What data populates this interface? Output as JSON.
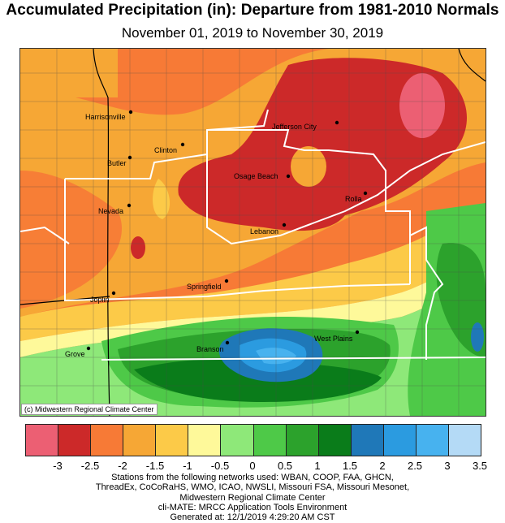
{
  "header": {
    "title": "Accumulated Precipitation (in): Departure from 1981-2010 Normals",
    "subtitle": "November 01, 2019 to November 30, 2019"
  },
  "map": {
    "credit": "(c) Midwestern Regional Climate Center",
    "cities": [
      {
        "name": "Harrisonville"
      },
      {
        "name": "Jefferson City"
      },
      {
        "name": "Clinton"
      },
      {
        "name": "Butler"
      },
      {
        "name": "Osage Beach"
      },
      {
        "name": "Rolla"
      },
      {
        "name": "Nevada"
      },
      {
        "name": "Lebanon"
      },
      {
        "name": "Springfield"
      },
      {
        "name": "Joplin"
      },
      {
        "name": "West Plains"
      },
      {
        "name": "Branson"
      },
      {
        "name": "Grove"
      }
    ]
  },
  "legend": {
    "colors": [
      "#ec5f73",
      "#cc2929",
      "#f77a36",
      "#f6a735",
      "#fcca48",
      "#fef99a",
      "#8ee879",
      "#4ec948",
      "#2ca22c",
      "#0a7c1a",
      "#1f78b8",
      "#2b9be0",
      "#47b2ef",
      "#b4daf6"
    ],
    "tick_labels": [
      "-3",
      "-2.5",
      "-2",
      "-1.5",
      "-1",
      "-0.5",
      "0",
      "0.5",
      "1",
      "1.5",
      "2",
      "2.5",
      "3",
      "3.5"
    ]
  },
  "footer": {
    "lines": [
      "Stations from the following networks used: WBAN, COOP, FAA, GHCN,",
      "ThreadEx, CoCoRaHS, WMO, ICAO, NWSLI, Missouri FSA, Missouri Mesonet,",
      "Midwestern Regional Climate Center",
      "cli-MATE: MRCC Application Tools Environment",
      "Generated at: 12/1/2019 4:29:20 AM CST"
    ]
  }
}
